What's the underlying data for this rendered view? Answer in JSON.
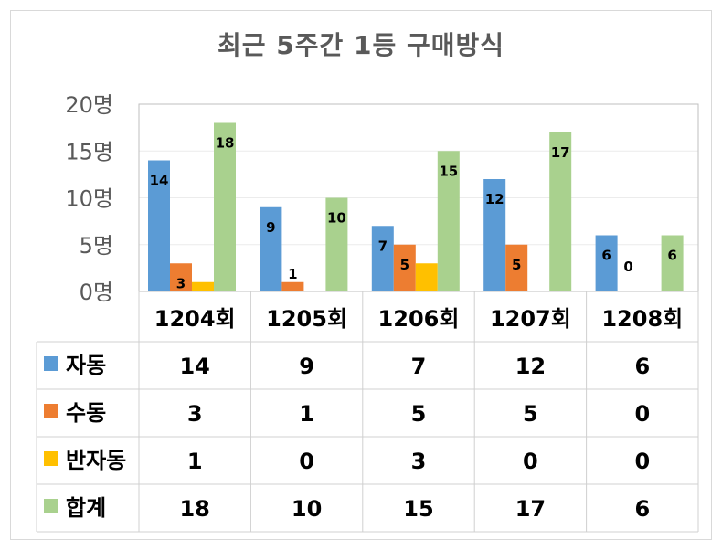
{
  "chart_data": {
    "type": "bar",
    "title": "최근 5주간 1등 구매방식",
    "categories": [
      "1204회",
      "1205회",
      "1206회",
      "1207회",
      "1208회"
    ],
    "yticks": [
      "0명",
      "5명",
      "10명",
      "15명",
      "20명"
    ],
    "ylim": [
      0,
      20
    ],
    "grid": true,
    "legend": "data-table",
    "series": [
      {
        "name": "자동",
        "color": "#5b9bd5",
        "values": [
          14,
          9,
          7,
          12,
          6
        ]
      },
      {
        "name": "수동",
        "color": "#ed7d31",
        "values": [
          3,
          1,
          5,
          5,
          0
        ]
      },
      {
        "name": "반자동",
        "color": "#ffc000",
        "values": [
          1,
          0,
          3,
          0,
          0
        ]
      },
      {
        "name": "합계",
        "color": "#a9d18e",
        "values": [
          18,
          10,
          15,
          17,
          6
        ]
      }
    ],
    "bar_labels": [
      [
        "14",
        "9",
        "7",
        "12",
        "6"
      ],
      [
        "3",
        "1",
        "5",
        "5",
        "0"
      ],
      [
        "",
        "",
        "",
        "",
        ""
      ],
      [
        "18",
        "10",
        "15",
        "17",
        "6"
      ]
    ]
  }
}
